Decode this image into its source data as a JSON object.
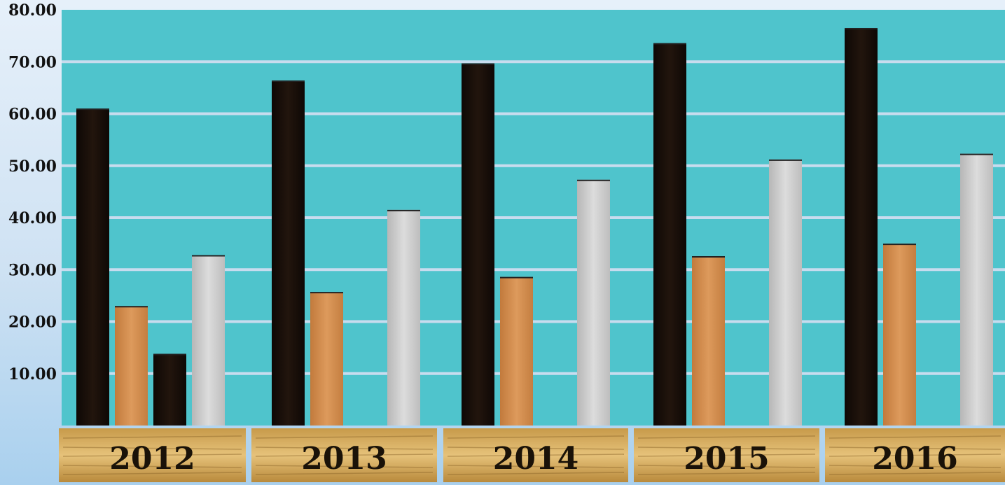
{
  "chart_data": {
    "type": "bar",
    "title": "",
    "xlabel": "",
    "ylabel": "",
    "categories": [
      "2012",
      "2013",
      "2014",
      "2015",
      "2016"
    ],
    "ylim": [
      0,
      80
    ],
    "yticks": [
      "10.00",
      "20.00",
      "30.00",
      "40.00",
      "50.00",
      "60.00",
      "70.00",
      "80.00"
    ],
    "grid": true,
    "legend": "none",
    "plot_background": "#4fc4cc",
    "series": [
      {
        "values": [
          61.0,
          66.4,
          69.7,
          73.6,
          76.5
        ],
        "color": "#140c08"
      },
      {
        "values": [
          23.0,
          25.7,
          28.6,
          32.6,
          35.0
        ],
        "color": "#d48c4c"
      },
      {
        "values": [
          13.8,
          null,
          null,
          null,
          null
        ],
        "color": "#140c08"
      },
      {
        "values": [
          32.8,
          41.5,
          47.3,
          51.2,
          52.3
        ],
        "color": "#c9c9c9"
      }
    ]
  }
}
